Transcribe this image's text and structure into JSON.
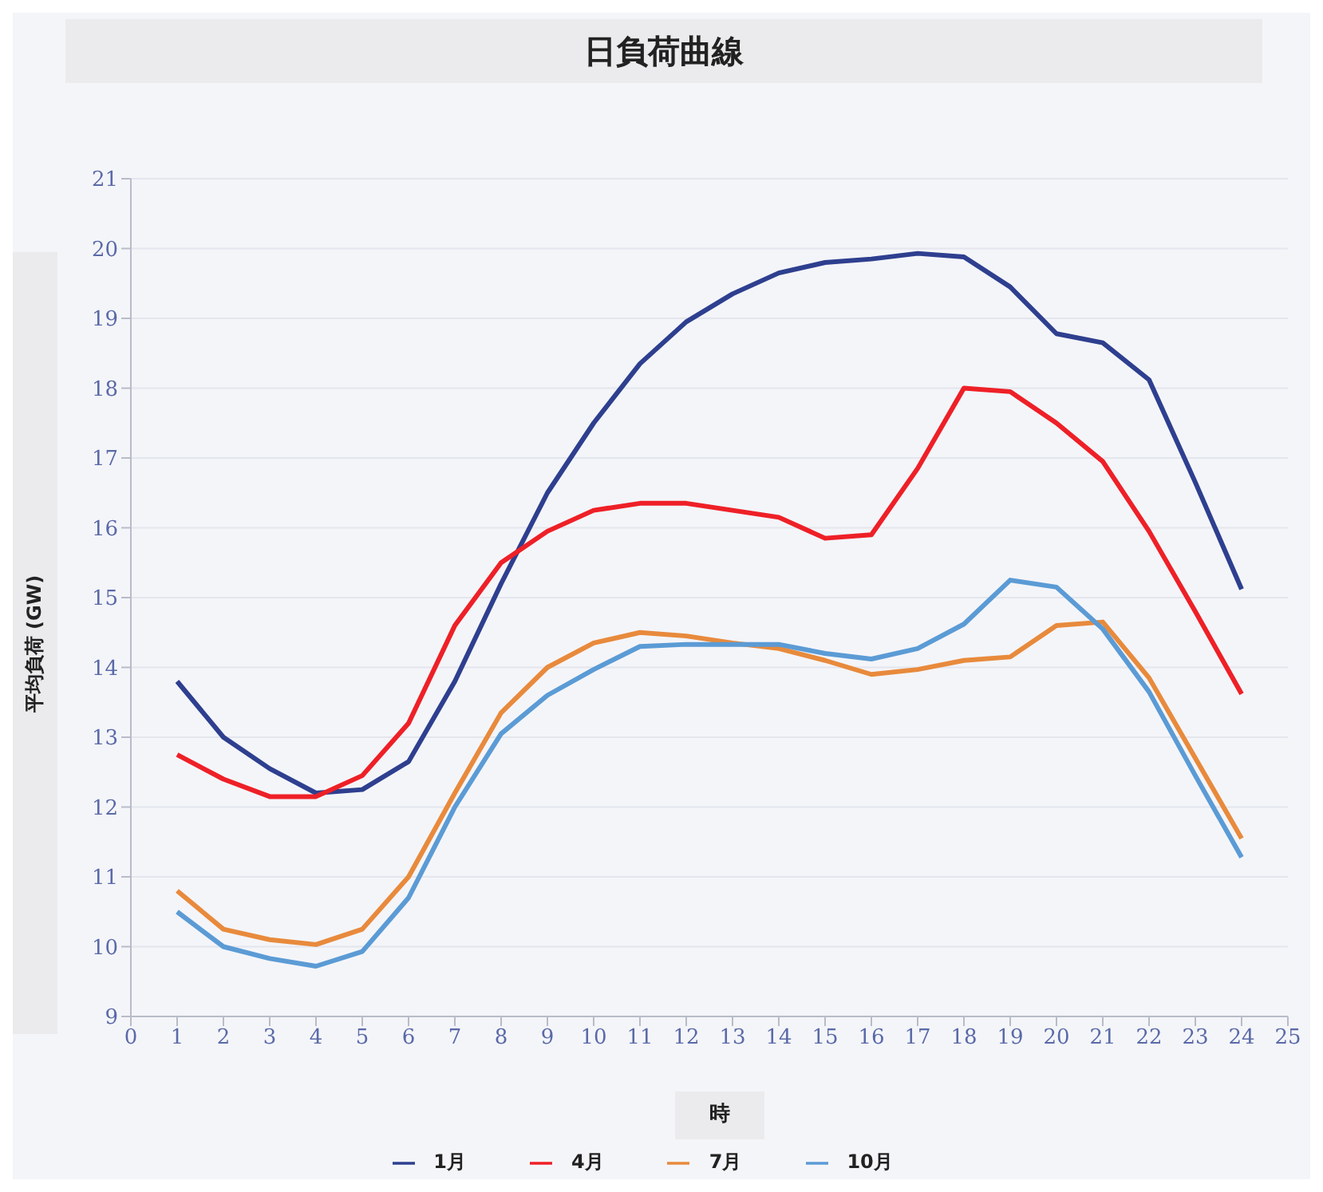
{
  "chart_data": {
    "type": "line",
    "title": "日負荷曲線",
    "xlabel": "時",
    "ylabel": "平均負荷 (GW)",
    "x": [
      1,
      2,
      3,
      4,
      5,
      6,
      7,
      8,
      9,
      10,
      11,
      12,
      13,
      14,
      15,
      16,
      17,
      18,
      19,
      20,
      21,
      22,
      23,
      24
    ],
    "xlim": [
      0,
      25
    ],
    "xticks": [
      0,
      1,
      2,
      3,
      4,
      5,
      6,
      7,
      8,
      9,
      10,
      11,
      12,
      13,
      14,
      15,
      16,
      17,
      18,
      19,
      20,
      21,
      22,
      23,
      24,
      25
    ],
    "ylim": [
      9,
      21
    ],
    "yticks": [
      9,
      10,
      11,
      12,
      13,
      14,
      15,
      16,
      17,
      18,
      19,
      20,
      21
    ],
    "grid": "y",
    "legend": "bottom",
    "marker": "none",
    "line_style": "solid",
    "series": [
      {
        "name": "1月",
        "color": "#2e3f8f",
        "values": [
          13.8,
          13.0,
          12.55,
          12.2,
          12.25,
          12.65,
          13.8,
          15.2,
          16.5,
          17.5,
          18.35,
          18.95,
          19.35,
          19.65,
          19.8,
          19.85,
          19.93,
          19.88,
          19.45,
          18.78,
          18.65,
          18.12,
          16.65,
          15.12
        ]
      },
      {
        "name": "4月",
        "color": "#ee2027",
        "values": [
          12.75,
          12.4,
          12.15,
          12.15,
          12.45,
          13.2,
          14.6,
          15.5,
          15.95,
          16.25,
          16.35,
          16.35,
          16.25,
          16.15,
          15.85,
          15.9,
          16.85,
          18.0,
          17.95,
          17.5,
          16.95,
          15.95,
          14.8,
          13.62
        ]
      },
      {
        "name": "7月",
        "color": "#e88a3c",
        "values": [
          10.8,
          10.25,
          10.1,
          10.03,
          10.25,
          11.0,
          12.2,
          13.35,
          14.0,
          14.35,
          14.5,
          14.45,
          14.35,
          14.27,
          14.1,
          13.9,
          13.97,
          14.1,
          14.15,
          14.6,
          14.65,
          13.85,
          12.7,
          11.55
        ]
      },
      {
        "name": "10月",
        "color": "#5b9bd5",
        "values": [
          10.5,
          10.0,
          9.83,
          9.72,
          9.93,
          10.7,
          12.0,
          13.05,
          13.6,
          13.97,
          14.3,
          14.33,
          14.33,
          14.33,
          14.2,
          14.12,
          14.27,
          14.62,
          15.25,
          15.15,
          14.55,
          13.65,
          12.45,
          11.28
        ]
      }
    ]
  }
}
